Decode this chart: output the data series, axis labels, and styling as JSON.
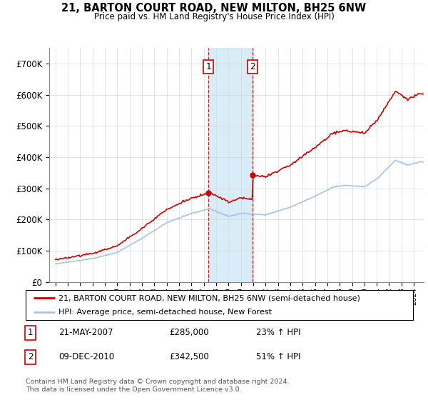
{
  "title": "21, BARTON COURT ROAD, NEW MILTON, BH25 6NW",
  "subtitle": "Price paid vs. HM Land Registry's House Price Index (HPI)",
  "legend_line1": "21, BARTON COURT ROAD, NEW MILTON, BH25 6NW (semi-detached house)",
  "legend_line2": "HPI: Average price, semi-detached house, New Forest",
  "footnote": "Contains HM Land Registry data © Crown copyright and database right 2024.\nThis data is licensed under the Open Government Licence v3.0.",
  "sale1_label": "1",
  "sale1_date": "21-MAY-2007",
  "sale1_price": "£285,000",
  "sale1_hpi": "23% ↑ HPI",
  "sale1_year": 2007.39,
  "sale1_value": 285000,
  "sale2_label": "2",
  "sale2_date": "09-DEC-2010",
  "sale2_price": "£342,500",
  "sale2_hpi": "51% ↑ HPI",
  "sale2_year": 2010.94,
  "sale2_value": 342500,
  "hpi_color": "#aac4e0",
  "price_color": "#cc0000",
  "shade_color": "#d8ecf8",
  "ylim": [
    0,
    750000
  ],
  "yticks": [
    0,
    100000,
    200000,
    300000,
    400000,
    500000,
    600000,
    700000
  ],
  "ytick_labels": [
    "£0",
    "£100K",
    "£200K",
    "£300K",
    "£400K",
    "£500K",
    "£600K",
    "£700K"
  ],
  "xlim_start": 1994.5,
  "xlim_end": 2024.8,
  "hpi_keypoints_years": [
    1995.0,
    1998.0,
    2000.0,
    2002.0,
    2004.0,
    2006.0,
    2007.5,
    2009.0,
    2010.0,
    2012.0,
    2014.0,
    2016.0,
    2017.5,
    2018.5,
    2020.0,
    2021.0,
    2022.5,
    2023.5,
    2024.5
  ],
  "hpi_keypoints_vals": [
    58000,
    75000,
    95000,
    140000,
    190000,
    220000,
    235000,
    210000,
    220000,
    215000,
    240000,
    275000,
    305000,
    310000,
    305000,
    330000,
    390000,
    375000,
    385000
  ]
}
